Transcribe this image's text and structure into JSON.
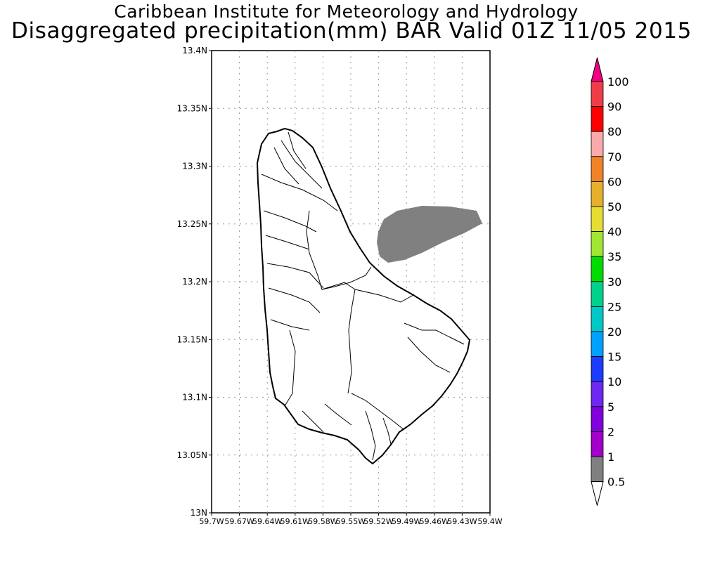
{
  "title": {
    "line1": "Caribbean Institute for Meteorology and Hydrology",
    "line2": "Disaggregated precipitation(mm) BAR Valid 01Z 11/05 2015"
  },
  "axes": {
    "lat_ticks": [
      "13.4N",
      "13.35N",
      "13.3N",
      "13.25N",
      "13.2N",
      "13.15N",
      "13.1N",
      "13.05N",
      "13N"
    ],
    "lon_ticks": [
      "59.7W",
      "59.67W",
      "59.64W",
      "59.61W",
      "59.58W",
      "59.55W",
      "59.52W",
      "59.49W",
      "59.46W",
      "59.43W",
      "59.4W"
    ],
    "lat_range": [
      13.0,
      13.4
    ],
    "lon_range": [
      -59.7,
      -59.4
    ],
    "grid": true
  },
  "legend": {
    "units": "mm",
    "levels": [
      {
        "label": "0.5",
        "color": "#ffffff"
      },
      {
        "label": "1",
        "color": "#808080"
      },
      {
        "label": "2",
        "color": "#a000c8"
      },
      {
        "label": "5",
        "color": "#8200dc"
      },
      {
        "label": "10",
        "color": "#6e28f0"
      },
      {
        "label": "15",
        "color": "#1e3cff"
      },
      {
        "label": "20",
        "color": "#00a0ff"
      },
      {
        "label": "25",
        "color": "#00c8c8"
      },
      {
        "label": "30",
        "color": "#00d28c"
      },
      {
        "label": "35",
        "color": "#00dc00"
      },
      {
        "label": "40",
        "color": "#a0e632"
      },
      {
        "label": "50",
        "color": "#e6dc32"
      },
      {
        "label": "60",
        "color": "#e6af2d"
      },
      {
        "label": "70",
        "color": "#f08228"
      },
      {
        "label": "80",
        "color": "#faaaaa"
      },
      {
        "label": "90",
        "color": "#ff0000"
      },
      {
        "label": "100",
        "color": "#f03c46"
      }
    ],
    "overflow_color": "#f00082"
  },
  "map": {
    "island": "Barbados",
    "land_fill": "#ffffff",
    "outline_color": "#000000",
    "precip_region": {
      "category": "0.5-1",
      "color": "#808080"
    }
  }
}
